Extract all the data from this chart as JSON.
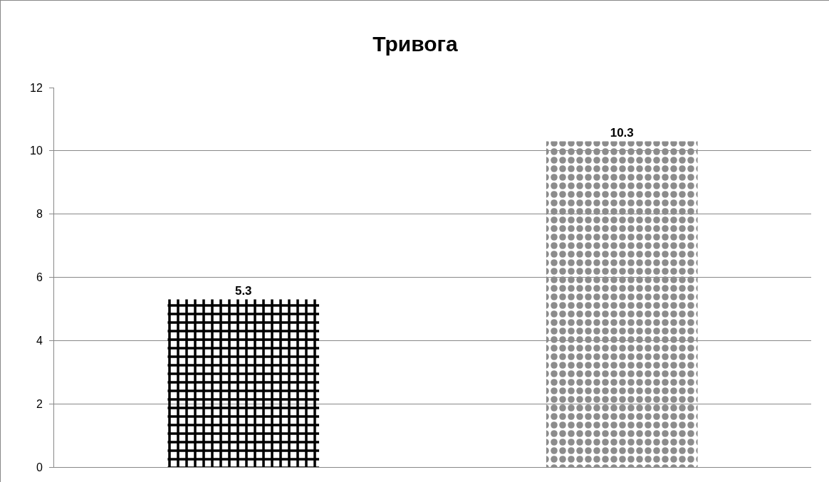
{
  "chart_data": {
    "type": "bar",
    "title": "Тривога",
    "categories": [
      null,
      null
    ],
    "values": [
      5.3,
      10.3
    ],
    "colors": [
      "#000000",
      "#8c8c8c"
    ],
    "ylim": [
      0,
      12
    ],
    "yticks": [
      0,
      2,
      4,
      6,
      8,
      10,
      12
    ],
    "grid": "y",
    "data_labels": true,
    "tick_labels": "y"
  }
}
